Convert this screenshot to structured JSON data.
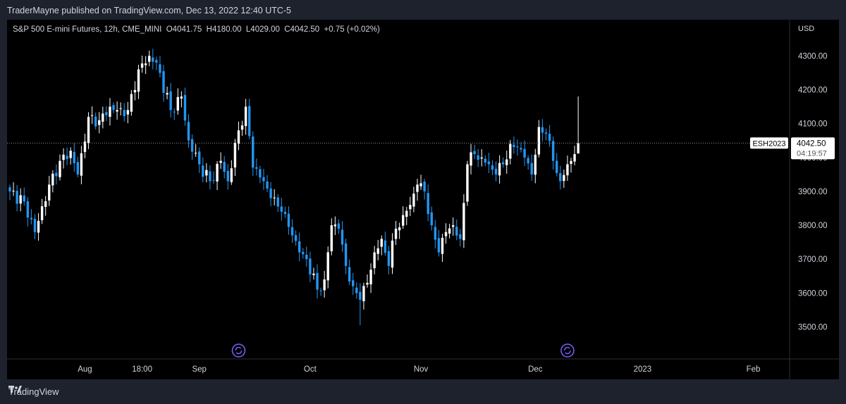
{
  "header": {
    "published_text": "TraderMayne published on TradingView.com, Dec 13, 2022 12:40 UTC-5"
  },
  "legend": {
    "symbol_text": "S&P 500 E-mini Futures, 12h, CME_MINI",
    "open": "O4041.75",
    "high": "H4180.00",
    "low": "L4029.00",
    "close": "C4042.50",
    "change": "+0.75 (+0.02%)"
  },
  "colors": {
    "up": "#ffffff",
    "down": "#2196f3",
    "background": "#000000",
    "frame": "#1e222d",
    "axis_text": "#d1d4dc",
    "dotted_line": "#9598a1",
    "event_icon": "#7b61ff"
  },
  "price_label": {
    "symbol": "ESH2023",
    "price": "4042.50",
    "countdown": "04:19:57"
  },
  "footer": {
    "brand": "TradingView"
  },
  "chart_data": {
    "type": "candlestick",
    "timeframe": "12h",
    "currency": "USD",
    "ylim": [
      3420,
      4390
    ],
    "last_price": 4042.5,
    "y_ticks": [
      "4300.00",
      "4200.00",
      "4100.00",
      "4000.00",
      "3900.00",
      "3800.00",
      "3700.00",
      "3600.00",
      "3500.00"
    ],
    "y_tick_values": [
      4300,
      4200,
      4100,
      4000,
      3900,
      3800,
      3700,
      3600,
      3500
    ],
    "x_ticks": [
      {
        "label": "Aug",
        "index": 21
      },
      {
        "label": "18:00",
        "index": 37
      },
      {
        "label": "Sep",
        "index": 53
      },
      {
        "label": "Oct",
        "index": 84
      },
      {
        "label": "Nov",
        "index": 115
      },
      {
        "label": "Dec",
        "index": 147
      },
      {
        "label": "2023",
        "index": 177
      },
      {
        "label": "Feb",
        "index": 208
      }
    ],
    "event_markers": [
      64,
      156
    ],
    "anchors": [
      [
        0,
        3900
      ],
      [
        4,
        3870
      ],
      [
        7,
        3780
      ],
      [
        11,
        3920
      ],
      [
        14,
        3990
      ],
      [
        17,
        4020
      ],
      [
        19,
        3950
      ],
      [
        22,
        4120
      ],
      [
        25,
        4110
      ],
      [
        28,
        4150
      ],
      [
        30,
        4140
      ],
      [
        33,
        4140
      ],
      [
        36,
        4260
      ],
      [
        39,
        4300
      ],
      [
        41,
        4280
      ],
      [
        45,
        4140
      ],
      [
        48,
        4180
      ],
      [
        50,
        4050
      ],
      [
        53,
        3980
      ],
      [
        56,
        3930
      ],
      [
        59,
        3990
      ],
      [
        61,
        3930
      ],
      [
        64,
        4080
      ],
      [
        66,
        4150
      ],
      [
        68,
        3970
      ],
      [
        71,
        3930
      ],
      [
        73,
        3880
      ],
      [
        76,
        3840
      ],
      [
        79,
        3770
      ],
      [
        81,
        3720
      ],
      [
        83,
        3700
      ],
      [
        86,
        3610
      ],
      [
        88,
        3640
      ],
      [
        90,
        3800
      ],
      [
        92,
        3790
      ],
      [
        94,
        3680
      ],
      [
        96,
        3620
      ],
      [
        98,
        3580
      ],
      [
        100,
        3630
      ],
      [
        102,
        3720
      ],
      [
        104,
        3760
      ],
      [
        106,
        3680
      ],
      [
        108,
        3790
      ],
      [
        110,
        3830
      ],
      [
        112,
        3860
      ],
      [
        114,
        3920
      ],
      [
        116,
        3900
      ],
      [
        118,
        3800
      ],
      [
        120,
        3720
      ],
      [
        122,
        3780
      ],
      [
        124,
        3800
      ],
      [
        126,
        3760
      ],
      [
        128,
        3980
      ],
      [
        130,
        4010
      ],
      [
        132,
        4000
      ],
      [
        134,
        3980
      ],
      [
        136,
        3950
      ],
      [
        138,
        3980
      ],
      [
        140,
        4040
      ],
      [
        142,
        4030
      ],
      [
        144,
        4000
      ],
      [
        146,
        3950
      ],
      [
        148,
        4090
      ],
      [
        150,
        4070
      ],
      [
        152,
        3990
      ],
      [
        154,
        3930
      ],
      [
        156,
        3980
      ],
      [
        158,
        4010
      ],
      [
        159,
        4042.5
      ]
    ]
  }
}
